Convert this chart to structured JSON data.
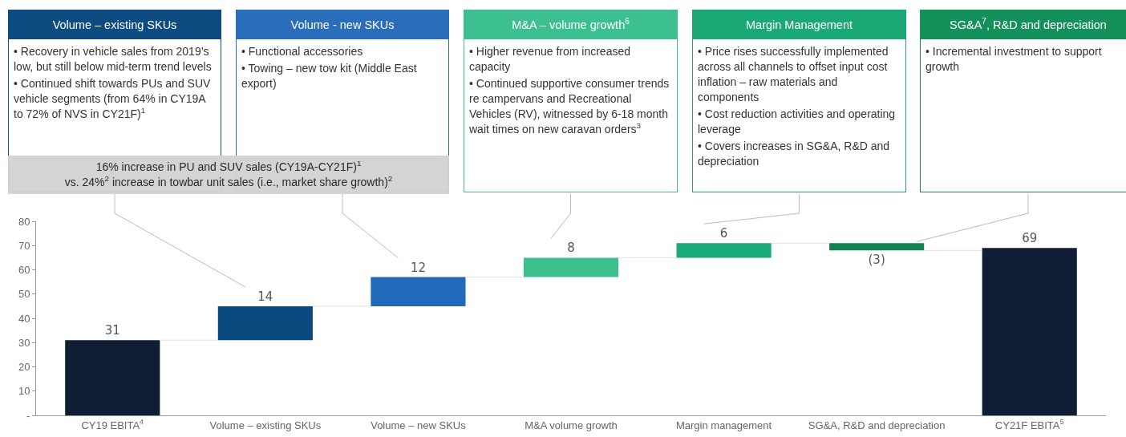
{
  "chart_data": {
    "type": "bar",
    "categories": [
      "CY19 EBITA$^{4}$",
      "Volume – existing SKUs",
      "Volume – new SKUs",
      "M&A volume growth",
      "Margin management",
      "SG&A, R&D and depreciation",
      "CY21F EBITA$^{5}$"
    ],
    "values": [
      31,
      14,
      12,
      8,
      6,
      -3,
      69
    ],
    "base": [
      0,
      31,
      45,
      57,
      65,
      71,
      0
    ],
    "colors": [
      "#0f1d35",
      "#0a4a7f",
      "#2169b9",
      "#3dbf8e",
      "#1aaa78",
      "#138150",
      "#0f1d35"
    ],
    "value_labels": [
      "31",
      "14",
      "12",
      "8",
      "6",
      "(3)",
      "69"
    ],
    "ylim": [
      0,
      80
    ],
    "yticks": [
      {
        "value": 0,
        "label": "-"
      },
      10,
      20,
      30,
      40,
      50,
      60,
      70,
      80
    ],
    "annotations": [
      "Volume – existing SKUs\n• Recovery in vehicle sales from 2019’s low, but still below mid-term trend levels\n• Continued shift towards PUs and SUV vehicle segments (from 64% in CY19A to 72% of NVS in CY21F)$^{1}$",
      "Volume - new SKUs\n• Functional accessories\n• Towing – new tow kit (Middle East export)",
      "M&A – volume growth$^{6}$\n• Higher revenue from increased capacity\n• Continued supportive consumer trends re campervans and Recreational Vehicles (RV), witnessed by 6-18 month wait times on new caravan orders$^{3}$",
      "Margin Management\n• Price rises successfully implemented across all channels to offset input cost inflation – raw materials and components\n• Cost reduction activities and operating leverage\n• Covers increases in SG&A, R&D and depreciation",
      "SG&A$^{7}$, R&D and depreciation\n• Incremental investment to support growth",
      "16% increase in PU and SUV sales (CY19A-CY21F)$^{1}$\nvs. 24%$^{2}$ increase in towbar unit sales (i.e., market share growth)$^{2}$"
    ]
  }
}
